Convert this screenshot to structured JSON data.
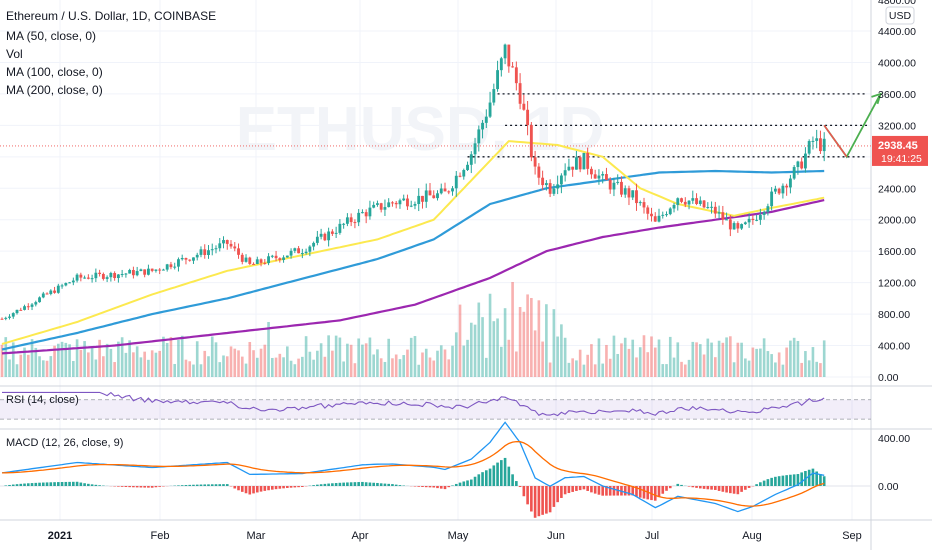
{
  "header": {
    "title": "Ethereum / U.S. Dollar, 1D, COINBASE",
    "indicators": [
      "MA (50, close, 0)",
      "Vol",
      "MA (100, close, 0)",
      "MA (200, close, 0)"
    ]
  },
  "watermark": "ETHUSD, 1D",
  "currency_badge": "USD",
  "price_badge": {
    "value": "2938.45",
    "countdown": "19:41:25"
  },
  "rsi_label": "RSI (14, close)",
  "macd_label": "MACD (12, 26, close, 9)",
  "colors": {
    "up": "#26a69a",
    "down": "#ef5350",
    "ma50": "#fce94f",
    "ma100": "#2f9bd8",
    "ma200": "#9c27b0",
    "rsi": "#7e57c2",
    "macd": "#2196f3",
    "signal": "#ff6d00",
    "arrow": "#4caf50"
  },
  "chart_data": {
    "type": "candlestick",
    "title": "Ethereum / U.S. Dollar, 1D, COINBASE",
    "x_ticks": [
      "2021",
      "Feb",
      "Mar",
      "Apr",
      "May",
      "Jun",
      "Jul",
      "Aug",
      "Sep"
    ],
    "y_ticks": [
      "4800.00",
      "4400.00",
      "4000.00",
      "3600.00",
      "3200.00",
      "2800.00",
      "2400.00",
      "2000.00",
      "1600.00",
      "1200.00",
      "800.00",
      "400.00",
      "0.00"
    ],
    "ylim": [
      0,
      4800
    ],
    "rsi_range": [
      30,
      70
    ],
    "macd_ticks": [
      "400.00",
      "0.00"
    ],
    "resistance_levels": [
      3600,
      3200,
      2800
    ],
    "last_price": 2938.45,
    "price_path": [
      [
        0,
        740
      ],
      [
        20,
        1260
      ],
      [
        40,
        1350
      ],
      [
        60,
        1700
      ],
      [
        66,
        1420
      ],
      [
        80,
        1620
      ],
      [
        96,
        2080
      ],
      [
        104,
        2220
      ],
      [
        118,
        2330
      ],
      [
        125,
        2850
      ],
      [
        130,
        3500
      ],
      [
        134,
        4150
      ],
      [
        138,
        3600
      ],
      [
        142,
        2600
      ],
      [
        146,
        2400
      ],
      [
        150,
        2680
      ],
      [
        155,
        2750
      ],
      [
        160,
        2500
      ],
      [
        168,
        2300
      ],
      [
        174,
        1950
      ],
      [
        180,
        2300
      ],
      [
        190,
        2100
      ],
      [
        196,
        1850
      ],
      [
        200,
        2000
      ],
      [
        206,
        2350
      ],
      [
        212,
        2650
      ],
      [
        216,
        3000
      ],
      [
        219,
        2938
      ]
    ],
    "ma50_path": [
      [
        0,
        420
      ],
      [
        20,
        700
      ],
      [
        40,
        1050
      ],
      [
        60,
        1350
      ],
      [
        80,
        1550
      ],
      [
        100,
        1750
      ],
      [
        115,
        2000
      ],
      [
        125,
        2500
      ],
      [
        135,
        3000
      ],
      [
        148,
        2950
      ],
      [
        160,
        2800
      ],
      [
        170,
        2400
      ],
      [
        180,
        2200
      ],
      [
        195,
        2050
      ],
      [
        205,
        2150
      ],
      [
        219,
        2280
      ]
    ],
    "ma100_path": [
      [
        0,
        350
      ],
      [
        20,
        560
      ],
      [
        40,
        800
      ],
      [
        60,
        1000
      ],
      [
        80,
        1250
      ],
      [
        100,
        1500
      ],
      [
        115,
        1750
      ],
      [
        130,
        2200
      ],
      [
        145,
        2400
      ],
      [
        160,
        2500
      ],
      [
        175,
        2600
      ],
      [
        190,
        2620
      ],
      [
        205,
        2600
      ],
      [
        219,
        2620
      ]
    ],
    "ma200_path": [
      [
        0,
        300
      ],
      [
        30,
        400
      ],
      [
        60,
        560
      ],
      [
        90,
        720
      ],
      [
        110,
        920
      ],
      [
        130,
        1260
      ],
      [
        145,
        1600
      ],
      [
        160,
        1780
      ],
      [
        175,
        1900
      ],
      [
        190,
        2000
      ],
      [
        205,
        2100
      ],
      [
        219,
        2250
      ]
    ],
    "forecast_path": [
      [
        219,
        3200
      ],
      [
        225,
        2800
      ],
      [
        234,
        3600
      ]
    ]
  }
}
